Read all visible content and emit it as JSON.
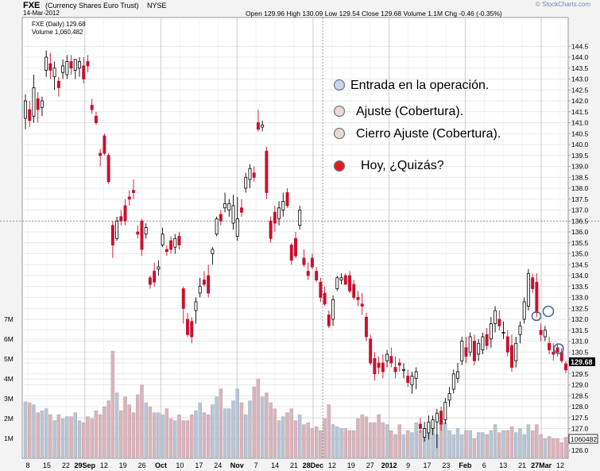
{
  "header": {
    "symbol": "FXE",
    "name": "(Currency Shares Euro Trust)",
    "exchange": "NYSE",
    "date": "14-Mar-2012",
    "quote": "Open 129.96  High 130.09  Low 129.54  Close 129.68  Volume 1.1M  Chg -0.46 (-0.35%)",
    "credit": "© StockCharts.com"
  },
  "inner_labels": {
    "daily": "FXE (Daily) 129.68",
    "volume": "Volume 1,060,482"
  },
  "legend": [
    {
      "text": "Entrada en la operación.",
      "fill": "#c9d7e6"
    },
    {
      "text": "Ajuste (Cobertura).",
      "fill": "#ebdacd"
    },
    {
      "text": "Cierro Ajuste (Cobertura).",
      "fill": "#ebdacd"
    },
    {
      "text": "Hoy, ¿Quizás?",
      "fill": "#e31a1c"
    }
  ],
  "colors": {
    "up": "#000000",
    "down": "#c8102e",
    "volume_up": "#b9c5d2",
    "volume_down": "#dfb2b9",
    "last_price_box": "#000000"
  },
  "chart_data": {
    "type": "candlestick",
    "title": "FXE (Daily) 129.68",
    "price_axis": {
      "ticks": [
        "126.0",
        "126.5",
        "127.0",
        "127.5",
        "128.0",
        "128.5",
        "129.0",
        "129.5",
        "130.0",
        "130.5",
        "131.0",
        "131.5",
        "132.0",
        "132.5",
        "133.0",
        "133.5",
        "134.0",
        "134.5",
        "135.0",
        "135.5",
        "136.0",
        "136.5",
        "137.0",
        "137.5",
        "138.0",
        "138.5",
        "139.0",
        "139.5",
        "140.0",
        "140.5",
        "141.0",
        "141.5",
        "142.0",
        "142.5",
        "143.0",
        "143.5",
        "144.0",
        "144.5"
      ],
      "range": [
        125.8,
        145.0
      ],
      "last_price": "129.68"
    },
    "volume_axis": {
      "ticks": [
        "1M",
        "2M",
        "3M",
        "4M",
        "5M",
        "6M",
        "7M"
      ],
      "last_volume": "1060482"
    },
    "x_ticks": [
      "8",
      "15",
      "22",
      "29Sep",
      "12",
      "19",
      "26",
      "Oct",
      "10",
      "17",
      "24",
      "Nov",
      "7",
      "14",
      "21",
      "28Dec",
      "12",
      "19",
      "27",
      "2012",
      "9",
      "17",
      "23",
      "Feb",
      "6",
      "13",
      "21",
      "27Mar",
      "12"
    ],
    "candles": [
      {
        "o": 141.2,
        "h": 142.3,
        "l": 140.7,
        "c": 142.0
      },
      {
        "o": 141.6,
        "h": 142.0,
        "l": 140.8,
        "c": 141.1
      },
      {
        "o": 141.3,
        "h": 143.2,
        "l": 141.0,
        "c": 142.6
      },
      {
        "o": 142.1,
        "h": 142.4,
        "l": 141.0,
        "c": 141.6
      },
      {
        "o": 141.7,
        "h": 142.2,
        "l": 141.3,
        "c": 142.0
      },
      {
        "o": 143.4,
        "h": 144.3,
        "l": 143.1,
        "c": 144.0
      },
      {
        "o": 143.7,
        "h": 144.2,
        "l": 143.0,
        "c": 143.4
      },
      {
        "o": 143.1,
        "h": 143.8,
        "l": 142.5,
        "c": 143.5
      },
      {
        "o": 142.9,
        "h": 143.1,
        "l": 142.2,
        "c": 142.6
      },
      {
        "o": 143.3,
        "h": 143.9,
        "l": 143.0,
        "c": 143.6
      },
      {
        "o": 143.2,
        "h": 144.1,
        "l": 143.0,
        "c": 143.8
      },
      {
        "o": 143.8,
        "h": 144.1,
        "l": 143.2,
        "c": 143.5
      },
      {
        "o": 143.4,
        "h": 143.8,
        "l": 143.0,
        "c": 143.9
      },
      {
        "o": 143.5,
        "h": 144.0,
        "l": 143.1,
        "c": 143.8
      },
      {
        "o": 143.6,
        "h": 144.0,
        "l": 142.8,
        "c": 143.0
      },
      {
        "o": 143.8,
        "h": 144.1,
        "l": 143.3,
        "c": 143.6
      },
      {
        "o": 141.8,
        "h": 142.1,
        "l": 141.4,
        "c": 141.6
      },
      {
        "o": 141.3,
        "h": 141.5,
        "l": 140.9,
        "c": 141.0
      },
      {
        "o": 139.6,
        "h": 139.8,
        "l": 139.0,
        "c": 139.5
      },
      {
        "o": 140.4,
        "h": 140.5,
        "l": 139.5,
        "c": 139.6
      },
      {
        "o": 139.5,
        "h": 139.6,
        "l": 138.2,
        "c": 138.3
      },
      {
        "o": 136.3,
        "h": 136.5,
        "l": 134.8,
        "c": 135.4
      },
      {
        "o": 135.7,
        "h": 136.7,
        "l": 135.6,
        "c": 136.5
      },
      {
        "o": 136.7,
        "h": 137.0,
        "l": 136.3,
        "c": 136.5
      },
      {
        "o": 137.2,
        "h": 137.5,
        "l": 136.3,
        "c": 136.5
      },
      {
        "o": 137.6,
        "h": 137.9,
        "l": 137.2,
        "c": 137.5
      },
      {
        "o": 137.9,
        "h": 138.4,
        "l": 137.5,
        "c": 137.8
      },
      {
        "o": 136.0,
        "h": 136.3,
        "l": 135.7,
        "c": 135.9
      },
      {
        "o": 136.5,
        "h": 136.6,
        "l": 134.9,
        "c": 135.2
      },
      {
        "o": 135.9,
        "h": 136.4,
        "l": 135.7,
        "c": 136.2
      },
      {
        "o": 133.9,
        "h": 134.0,
        "l": 133.4,
        "c": 133.6
      },
      {
        "o": 134.2,
        "h": 134.6,
        "l": 133.5,
        "c": 133.7
      },
      {
        "o": 134.3,
        "h": 134.7,
        "l": 134.0,
        "c": 134.4
      },
      {
        "o": 135.4,
        "h": 136.2,
        "l": 135.3,
        "c": 135.9
      },
      {
        "o": 135.2,
        "h": 135.4,
        "l": 134.9,
        "c": 135.1
      },
      {
        "o": 135.6,
        "h": 135.8,
        "l": 135.0,
        "c": 135.2
      },
      {
        "o": 135.3,
        "h": 135.9,
        "l": 135.0,
        "c": 135.7
      },
      {
        "o": 135.8,
        "h": 136.0,
        "l": 135.2,
        "c": 135.4
      },
      {
        "o": 133.4,
        "h": 133.5,
        "l": 131.8,
        "c": 132.5
      },
      {
        "o": 132.0,
        "h": 132.3,
        "l": 131.2,
        "c": 131.3
      },
      {
        "o": 131.9,
        "h": 132.1,
        "l": 130.9,
        "c": 131.2
      },
      {
        "o": 132.4,
        "h": 133.0,
        "l": 131.8,
        "c": 132.8
      },
      {
        "o": 133.2,
        "h": 133.9,
        "l": 133.0,
        "c": 133.5
      },
      {
        "o": 133.8,
        "h": 134.2,
        "l": 133.5,
        "c": 133.6
      },
      {
        "o": 134.0,
        "h": 134.5,
        "l": 133.0,
        "c": 133.2
      },
      {
        "o": 135.0,
        "h": 135.3,
        "l": 134.5,
        "c": 135.2
      },
      {
        "o": 135.9,
        "h": 136.7,
        "l": 135.8,
        "c": 136.6
      },
      {
        "o": 136.8,
        "h": 137.0,
        "l": 136.3,
        "c": 136.5
      },
      {
        "o": 137.1,
        "h": 137.8,
        "l": 136.9,
        "c": 137.3
      },
      {
        "o": 137.0,
        "h": 137.5,
        "l": 136.7,
        "c": 137.3
      },
      {
        "o": 136.4,
        "h": 137.7,
        "l": 136.1,
        "c": 137.2
      },
      {
        "o": 135.8,
        "h": 137.6,
        "l": 135.6,
        "c": 136.6
      },
      {
        "o": 137.1,
        "h": 137.5,
        "l": 136.7,
        "c": 136.9
      },
      {
        "o": 138.0,
        "h": 138.7,
        "l": 137.8,
        "c": 138.5
      },
      {
        "o": 138.4,
        "h": 139.1,
        "l": 138.0,
        "c": 138.9
      },
      {
        "o": 138.7,
        "h": 139.0,
        "l": 138.3,
        "c": 138.5
      },
      {
        "o": 141.0,
        "h": 141.6,
        "l": 140.6,
        "c": 140.7
      },
      {
        "o": 140.8,
        "h": 141.1,
        "l": 140.6,
        "c": 140.9
      },
      {
        "o": 139.7,
        "h": 139.9,
        "l": 137.5,
        "c": 137.8
      },
      {
        "o": 136.5,
        "h": 136.7,
        "l": 135.5,
        "c": 135.7
      },
      {
        "o": 136.9,
        "h": 137.2,
        "l": 136.0,
        "c": 136.4
      },
      {
        "o": 136.6,
        "h": 137.4,
        "l": 136.3,
        "c": 137.1
      },
      {
        "o": 137.0,
        "h": 137.8,
        "l": 136.7,
        "c": 137.4
      },
      {
        "o": 137.8,
        "h": 138.0,
        "l": 137.1,
        "c": 137.2
      },
      {
        "o": 135.4,
        "h": 135.5,
        "l": 134.5,
        "c": 134.7
      },
      {
        "o": 135.7,
        "h": 136.0,
        "l": 134.8,
        "c": 134.9
      },
      {
        "o": 136.3,
        "h": 137.2,
        "l": 136.1,
        "c": 137.0
      },
      {
        "o": 134.8,
        "h": 135.2,
        "l": 134.4,
        "c": 134.5
      },
      {
        "o": 134.2,
        "h": 134.6,
        "l": 133.8,
        "c": 134.0
      },
      {
        "o": 134.8,
        "h": 135.0,
        "l": 134.3,
        "c": 134.4
      },
      {
        "o": 134.2,
        "h": 134.4,
        "l": 133.7,
        "c": 133.8
      },
      {
        "o": 133.7,
        "h": 133.9,
        "l": 132.8,
        "c": 133.0
      },
      {
        "o": 133.2,
        "h": 133.5,
        "l": 132.6,
        "c": 132.7
      },
      {
        "o": 132.2,
        "h": 132.4,
        "l": 131.6,
        "c": 131.7
      },
      {
        "o": 132.0,
        "h": 133.1,
        "l": 131.7,
        "c": 132.9
      },
      {
        "o": 133.4,
        "h": 134.0,
        "l": 133.3,
        "c": 133.9
      },
      {
        "o": 133.8,
        "h": 134.1,
        "l": 133.6,
        "c": 133.9
      },
      {
        "o": 134.0,
        "h": 134.1,
        "l": 133.7,
        "c": 133.6
      },
      {
        "o": 134.0,
        "h": 134.2,
        "l": 133.2,
        "c": 133.3
      },
      {
        "o": 133.6,
        "h": 133.8,
        "l": 132.9,
        "c": 133.0
      },
      {
        "o": 133.0,
        "h": 133.3,
        "l": 132.6,
        "c": 132.9
      },
      {
        "o": 132.7,
        "h": 133.2,
        "l": 132.2,
        "c": 132.6
      },
      {
        "o": 132.1,
        "h": 132.3,
        "l": 131.0,
        "c": 131.2
      },
      {
        "o": 131.1,
        "h": 131.3,
        "l": 129.9,
        "c": 130.0
      },
      {
        "o": 130.2,
        "h": 130.5,
        "l": 129.2,
        "c": 129.5
      },
      {
        "o": 130.0,
        "h": 130.3,
        "l": 129.5,
        "c": 129.8
      },
      {
        "o": 130.0,
        "h": 130.4,
        "l": 129.3,
        "c": 129.6
      },
      {
        "o": 130.1,
        "h": 130.6,
        "l": 129.8,
        "c": 130.4
      },
      {
        "o": 130.3,
        "h": 130.7,
        "l": 129.8,
        "c": 130.0
      },
      {
        "o": 129.8,
        "h": 130.3,
        "l": 129.3,
        "c": 129.6
      },
      {
        "o": 130.0,
        "h": 130.2,
        "l": 129.6,
        "c": 129.9
      },
      {
        "o": 129.7,
        "h": 130.0,
        "l": 129.3,
        "c": 129.7
      },
      {
        "o": 129.4,
        "h": 129.7,
        "l": 128.9,
        "c": 129.1
      },
      {
        "o": 129.0,
        "h": 129.6,
        "l": 128.6,
        "c": 129.4
      },
      {
        "o": 129.3,
        "h": 129.8,
        "l": 128.8,
        "c": 129.6
      },
      {
        "o": 127.2,
        "h": 127.5,
        "l": 126.8,
        "c": 127.0
      },
      {
        "o": 126.6,
        "h": 127.3,
        "l": 126.4,
        "c": 127.0
      },
      {
        "o": 126.8,
        "h": 127.6,
        "l": 126.5,
        "c": 127.3
      },
      {
        "o": 127.0,
        "h": 127.6,
        "l": 126.7,
        "c": 127.4
      },
      {
        "o": 127.3,
        "h": 127.9,
        "l": 126.1,
        "c": 127.7
      },
      {
        "o": 127.8,
        "h": 128.0,
        "l": 126.9,
        "c": 127.2
      },
      {
        "o": 127.4,
        "h": 128.4,
        "l": 127.2,
        "c": 128.2
      },
      {
        "o": 128.3,
        "h": 128.9,
        "l": 128.0,
        "c": 128.6
      },
      {
        "o": 128.8,
        "h": 129.7,
        "l": 128.6,
        "c": 129.5
      },
      {
        "o": 129.3,
        "h": 130.0,
        "l": 129.1,
        "c": 129.6
      },
      {
        "o": 130.1,
        "h": 131.2,
        "l": 129.9,
        "c": 131.0
      },
      {
        "o": 130.7,
        "h": 131.2,
        "l": 130.0,
        "c": 130.3
      },
      {
        "o": 130.5,
        "h": 131.4,
        "l": 130.3,
        "c": 131.2
      },
      {
        "o": 131.0,
        "h": 131.3,
        "l": 129.9,
        "c": 130.1
      },
      {
        "o": 130.4,
        "h": 131.1,
        "l": 130.1,
        "c": 130.9
      },
      {
        "o": 130.6,
        "h": 131.4,
        "l": 130.4,
        "c": 131.2
      },
      {
        "o": 131.3,
        "h": 131.6,
        "l": 130.6,
        "c": 130.8
      },
      {
        "o": 131.1,
        "h": 132.1,
        "l": 130.7,
        "c": 131.8
      },
      {
        "o": 131.8,
        "h": 132.6,
        "l": 131.4,
        "c": 132.4
      },
      {
        "o": 132.0,
        "h": 132.4,
        "l": 131.5,
        "c": 131.7
      },
      {
        "o": 131.4,
        "h": 131.9,
        "l": 131.1,
        "c": 131.4
      },
      {
        "o": 131.2,
        "h": 131.5,
        "l": 130.3,
        "c": 130.5
      },
      {
        "o": 130.8,
        "h": 131.3,
        "l": 129.6,
        "c": 129.8
      },
      {
        "o": 130.1,
        "h": 131.2,
        "l": 129.8,
        "c": 130.9
      },
      {
        "o": 131.3,
        "h": 131.9,
        "l": 130.9,
        "c": 131.7
      },
      {
        "o": 132.0,
        "h": 133.0,
        "l": 131.8,
        "c": 132.8
      },
      {
        "o": 132.6,
        "h": 134.3,
        "l": 132.4,
        "c": 134.1
      },
      {
        "o": 133.9,
        "h": 134.1,
        "l": 133.2,
        "c": 133.4
      },
      {
        "o": 133.7,
        "h": 134.1,
        "l": 132.1,
        "c": 132.3
      },
      {
        "o": 131.5,
        "h": 131.8,
        "l": 131.0,
        "c": 131.3
      },
      {
        "o": 131.2,
        "h": 131.7,
        "l": 131.0,
        "c": 131.5
      },
      {
        "o": 130.9,
        "h": 131.2,
        "l": 130.4,
        "c": 130.6
      },
      {
        "o": 130.5,
        "h": 130.9,
        "l": 130.1,
        "c": 130.4
      },
      {
        "o": 130.7,
        "h": 130.9,
        "l": 130.3,
        "c": 130.5
      },
      {
        "o": 130.5,
        "h": 130.7,
        "l": 130.0,
        "c": 130.1
      },
      {
        "o": 129.96,
        "h": 130.09,
        "l": 129.54,
        "c": 129.68
      }
    ],
    "volume": [
      2.85,
      2.8,
      2.7,
      2.3,
      2.4,
      2.5,
      2.2,
      1.9,
      2.2,
      2.0,
      2.1,
      2.1,
      2.3,
      1.9,
      1.8,
      2.1,
      2.0,
      2.4,
      2.2,
      2.6,
      2.9,
      5.4,
      3.3,
      2.4,
      3.1,
      2.7,
      2.3,
      3.2,
      3.7,
      2.8,
      2.6,
      2.3,
      2.3,
      2.2,
      2.5,
      2.0,
      1.9,
      2.2,
      1.9,
      1.9,
      2.2,
      2.4,
      2.8,
      2.3,
      2.2,
      2.7,
      3.1,
      3.5,
      2.5,
      2.5,
      2.9,
      3.5,
      2.8,
      2.2,
      2.9,
      3.6,
      4.0,
      3.1,
      3.3,
      2.8,
      2.5,
      1.9,
      2.1,
      2.3,
      2.5,
      1.9,
      2.2,
      1.7,
      1.8,
      1.5,
      1.6,
      1.4,
      2.0,
      2.7,
      1.7,
      1.6,
      1.5,
      1.5,
      1.4,
      1.4,
      2.0,
      2.2,
      2.1,
      1.8,
      1.8,
      2.2,
      1.8,
      1.7,
      1.4,
      1.2,
      1.7,
      1.2,
      1.4,
      1.3,
      1.8,
      1.4,
      1.5,
      1.7,
      1.6,
      1.2,
      1.9,
      1.8,
      1.4,
      1.2,
      1.5,
      1.2,
      1.4,
      1.4,
      1.0,
      1.3,
      1.3,
      1.2,
      1.4,
      1.7,
      1.3,
      1.4,
      1.4,
      1.6,
      1.3,
      1.5,
      1.2,
      1.7,
      1.4,
      1.7,
      1.2,
      1.0,
      1.1,
      1.0,
      1.0,
      0.8,
      1.06
    ]
  }
}
